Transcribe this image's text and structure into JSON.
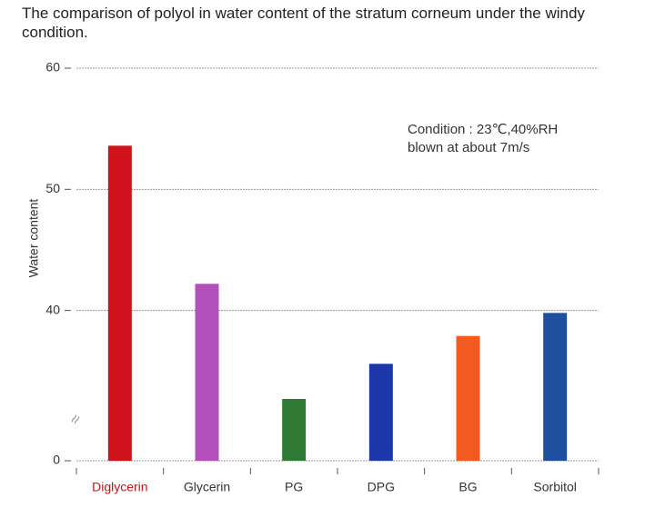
{
  "chart_data": {
    "type": "bar",
    "title": "The comparison of polyol in water content of the stratum corneum under the windy condition.",
    "y_label": "Water content",
    "annotation": [
      "Condition : 23℃,40%RH",
      "blown at about 7m/s"
    ],
    "categories": [
      "Diglycerin",
      "Glycerin",
      "PG",
      "DPG",
      "BG",
      "Sorbitol"
    ],
    "values": [
      53.6,
      42.2,
      32.7,
      35.6,
      37.9,
      39.8
    ],
    "colors": [
      "#d0121c",
      "#b24fbb",
      "#2f7b35",
      "#1b37aa",
      "#f25a1f",
      "#1f50a0"
    ],
    "highlight_color": "#d0121c",
    "ylim": [
      0,
      60
    ],
    "axis_break": [
      0,
      30
    ],
    "yticks": [
      0,
      40,
      50,
      60
    ],
    "grid": true
  }
}
